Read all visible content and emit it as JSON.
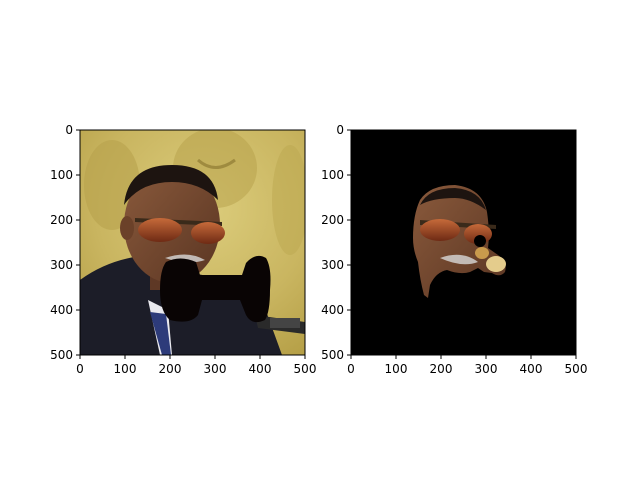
{
  "chart_data": [
    {
      "type": "image",
      "panel": "left",
      "content": "photo of a man wearing sunglasses and a suit with a black bow-tie shaped mask over the lower face",
      "xlim": [
        0,
        500
      ],
      "ylim": [
        500,
        0
      ],
      "xticks": [
        0,
        100,
        200,
        300,
        400,
        500
      ],
      "yticks": [
        0,
        100,
        200,
        300,
        400,
        500
      ]
    },
    {
      "type": "image",
      "panel": "right",
      "content": "segmentation mask showing only the head region of the same photo on a black background",
      "xlim": [
        0,
        500
      ],
      "ylim": [
        500,
        0
      ],
      "xticks": [
        0,
        100,
        200,
        300,
        400,
        500
      ],
      "yticks": [
        0,
        100,
        200,
        300,
        400,
        500
      ]
    }
  ]
}
